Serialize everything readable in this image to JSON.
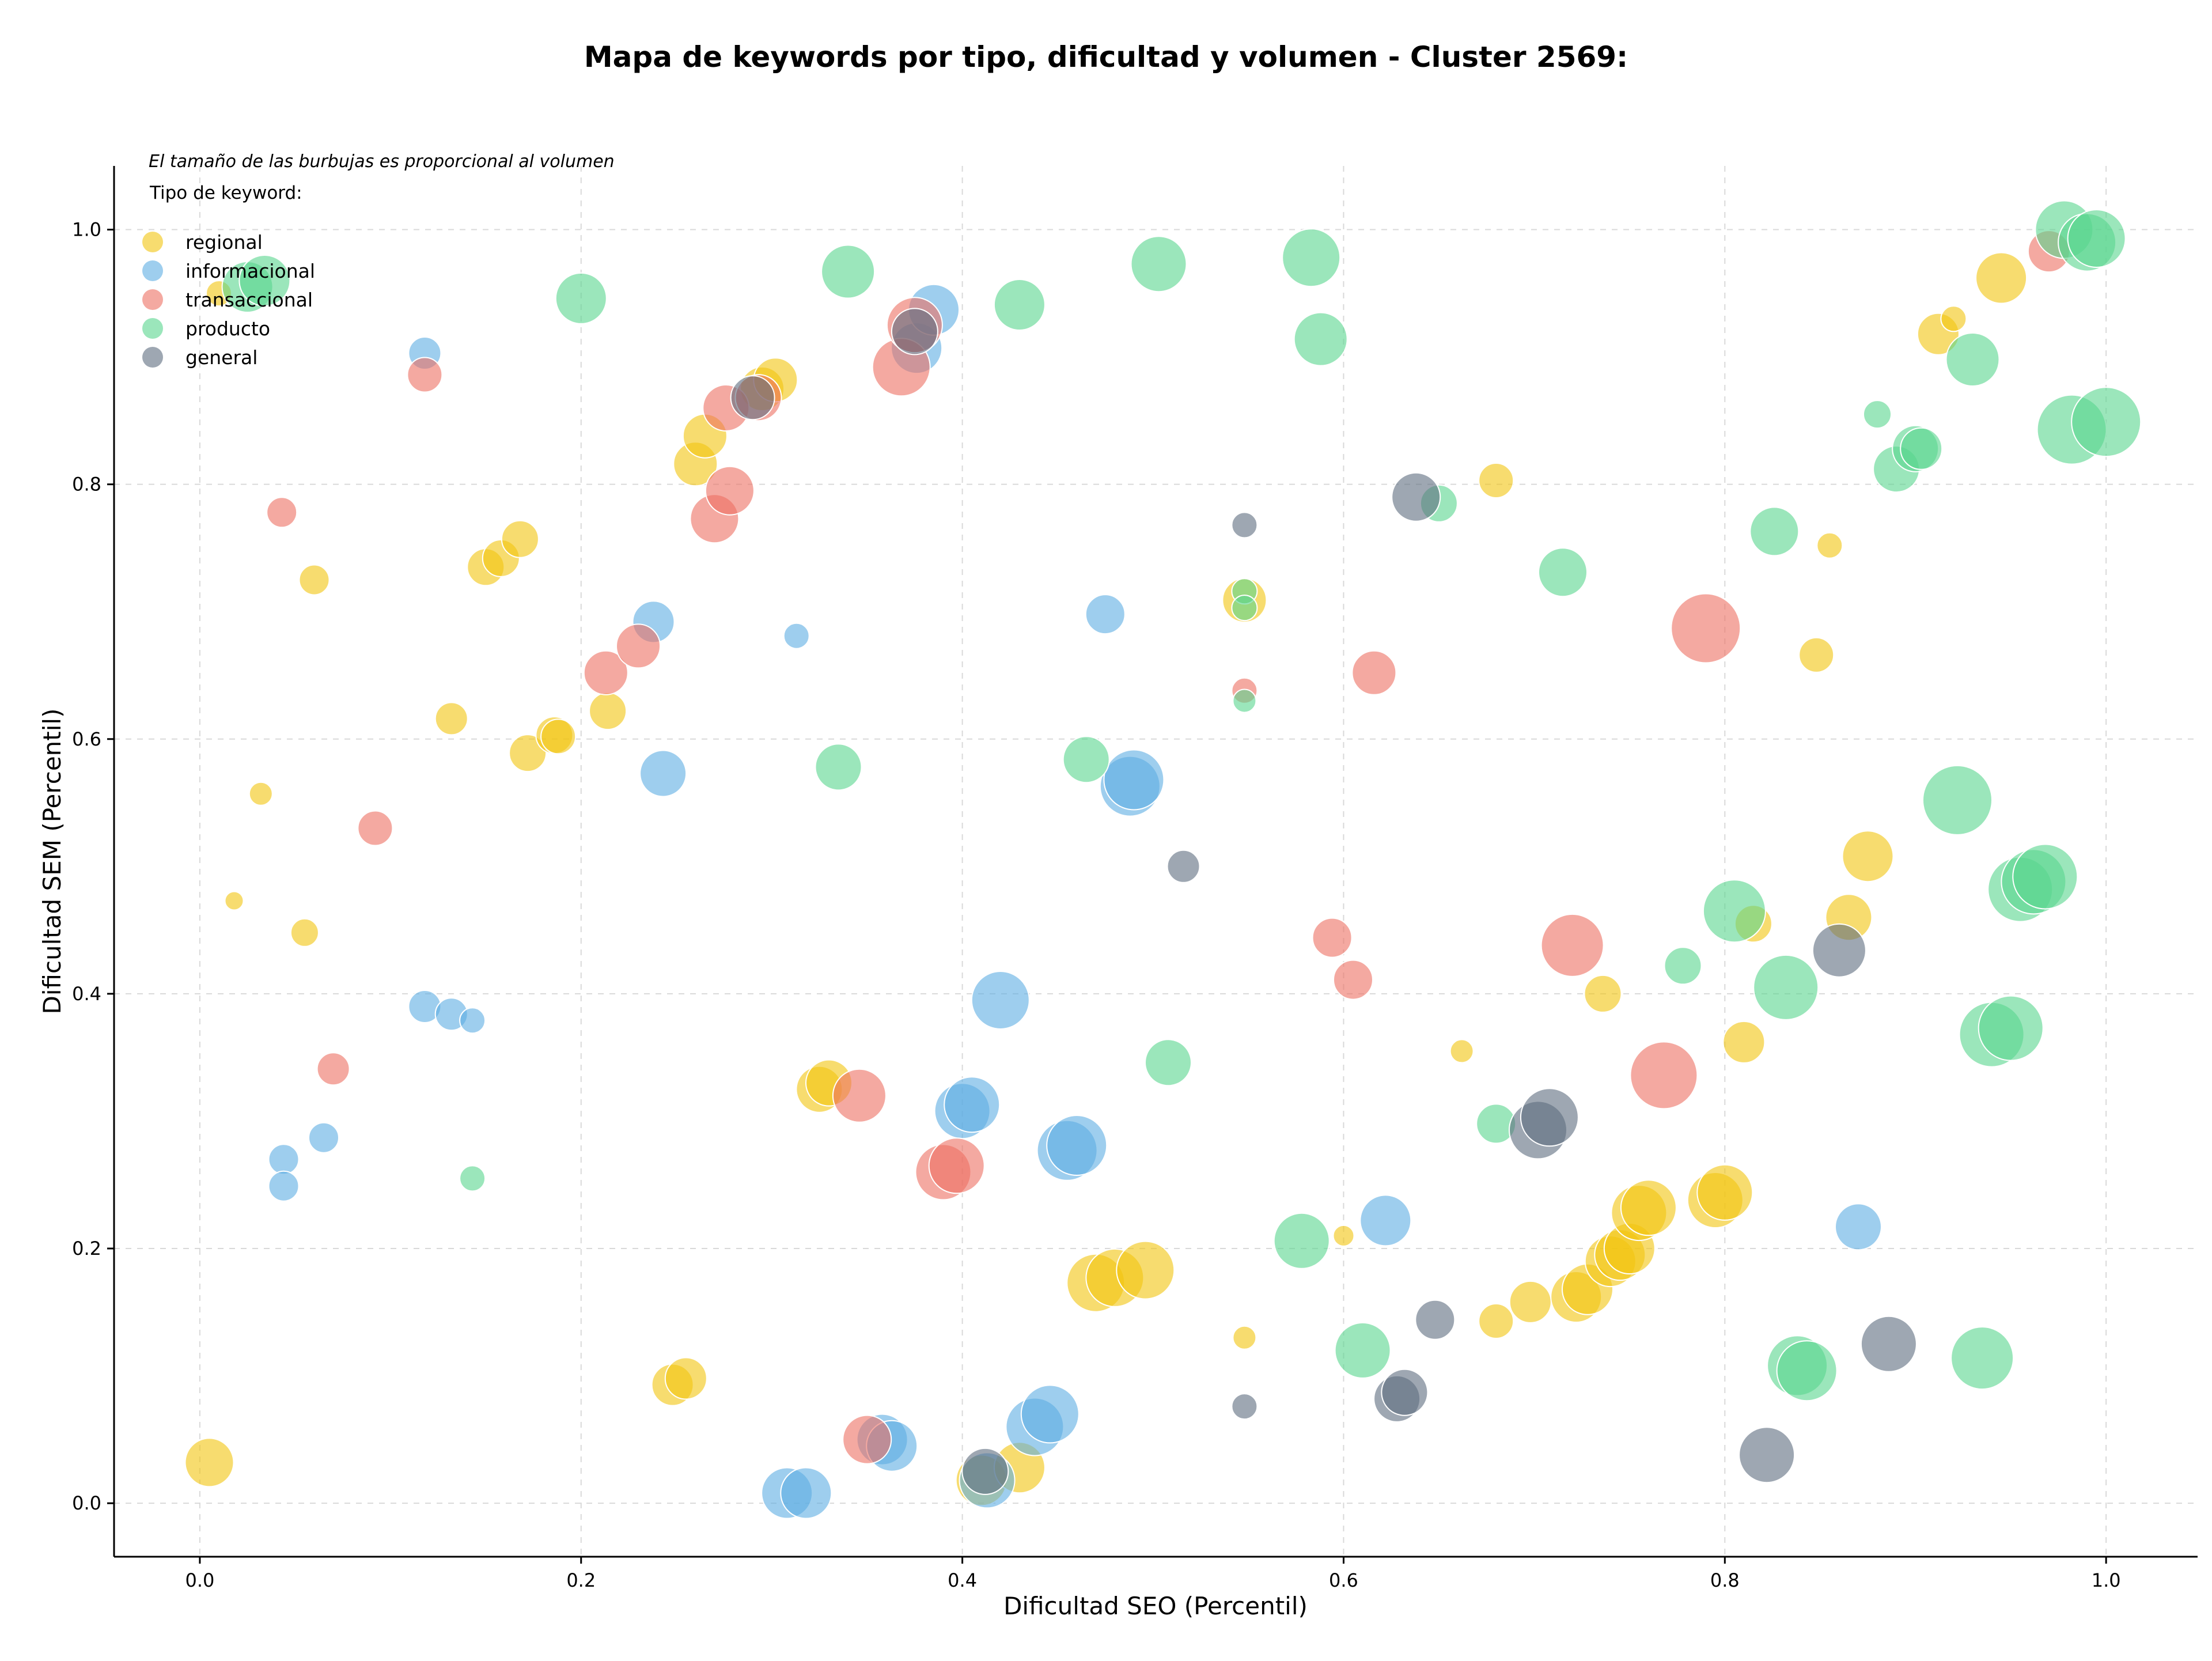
{
  "chart_data": {
    "type": "scatter",
    "title": "Mapa de keywords por tipo, dificultad y volumen - Cluster 2569:",
    "xlabel": "Dificultad SEO (Percentil)",
    "ylabel": "Dificultad SEM (Percentil)",
    "xlim": [
      -0.045,
      1.048
    ],
    "ylim": [
      -0.042,
      1.05
    ],
    "xticks": [
      "0.0",
      "0.2",
      "0.4",
      "0.6",
      "0.8",
      "1.0"
    ],
    "yticks": [
      "0.0",
      "0.2",
      "0.4",
      "0.6",
      "0.8",
      "1.0"
    ],
    "grid": true,
    "bubble_note": "El tamaño de las burbujas es proporcional al volumen",
    "legend_title": "Tipo de keyword:",
    "legend_position": "top-left",
    "series": [
      {
        "name": "regional",
        "color": "#F1C40F",
        "points": [
          [
            0.005,
            0.032,
            42
          ],
          [
            0.01,
            0.95,
            22
          ],
          [
            0.018,
            0.473,
            16
          ],
          [
            0.032,
            0.557,
            20
          ],
          [
            0.055,
            0.448,
            24
          ],
          [
            0.06,
            0.725,
            26
          ],
          [
            0.132,
            0.616,
            28
          ],
          [
            0.15,
            0.735,
            32
          ],
          [
            0.158,
            0.742,
            32
          ],
          [
            0.168,
            0.757,
            32
          ],
          [
            0.172,
            0.589,
            32
          ],
          [
            0.186,
            0.603,
            32
          ],
          [
            0.188,
            0.602,
            30
          ],
          [
            0.214,
            0.622,
            32
          ],
          [
            0.26,
            0.816,
            38
          ],
          [
            0.265,
            0.838,
            38
          ],
          [
            0.295,
            0.875,
            38
          ],
          [
            0.302,
            0.882,
            38
          ],
          [
            0.248,
            0.093,
            36
          ],
          [
            0.255,
            0.098,
            36
          ],
          [
            0.325,
            0.325,
            40
          ],
          [
            0.33,
            0.33,
            40
          ],
          [
            0.41,
            0.018,
            44
          ],
          [
            0.43,
            0.028,
            44
          ],
          [
            0.47,
            0.173,
            50
          ],
          [
            0.48,
            0.177,
            50
          ],
          [
            0.496,
            0.183,
            50
          ],
          [
            0.548,
            0.709,
            38
          ],
          [
            0.548,
            0.13,
            20
          ],
          [
            0.6,
            0.21,
            18
          ],
          [
            0.662,
            0.355,
            20
          ],
          [
            0.68,
            0.803,
            30
          ],
          [
            0.68,
            0.143,
            30
          ],
          [
            0.698,
            0.158,
            36
          ],
          [
            0.722,
            0.162,
            44
          ],
          [
            0.728,
            0.168,
            44
          ],
          [
            0.736,
            0.4,
            32
          ],
          [
            0.74,
            0.19,
            44
          ],
          [
            0.745,
            0.195,
            44
          ],
          [
            0.75,
            0.2,
            44
          ],
          [
            0.755,
            0.228,
            48
          ],
          [
            0.76,
            0.232,
            48
          ],
          [
            0.795,
            0.238,
            48
          ],
          [
            0.8,
            0.244,
            48
          ],
          [
            0.81,
            0.362,
            36
          ],
          [
            0.815,
            0.455,
            32
          ],
          [
            0.848,
            0.666,
            30
          ],
          [
            0.855,
            0.752,
            22
          ],
          [
            0.865,
            0.46,
            40
          ],
          [
            0.875,
            0.508,
            44
          ],
          [
            0.912,
            0.918,
            36
          ],
          [
            0.92,
            0.93,
            22
          ],
          [
            0.945,
            0.962,
            44
          ]
        ]
      },
      {
        "name": "informacional",
        "color": "#5DADE2",
        "points": [
          [
            0.044,
            0.27,
            26
          ],
          [
            0.044,
            0.249,
            26
          ],
          [
            0.065,
            0.287,
            26
          ],
          [
            0.118,
            0.903,
            28
          ],
          [
            0.118,
            0.39,
            28
          ],
          [
            0.132,
            0.384,
            28
          ],
          [
            0.143,
            0.379,
            22
          ],
          [
            0.238,
            0.692,
            36
          ],
          [
            0.243,
            0.573,
            40
          ],
          [
            0.313,
            0.681,
            22
          ],
          [
            0.308,
            0.008,
            44
          ],
          [
            0.318,
            0.008,
            44
          ],
          [
            0.358,
            0.05,
            44
          ],
          [
            0.363,
            0.045,
            44
          ],
          [
            0.376,
            0.907,
            44
          ],
          [
            0.385,
            0.937,
            44
          ],
          [
            0.4,
            0.308,
            48
          ],
          [
            0.405,
            0.313,
            48
          ],
          [
            0.413,
            0.018,
            48
          ],
          [
            0.42,
            0.395,
            50
          ],
          [
            0.438,
            0.06,
            50
          ],
          [
            0.446,
            0.07,
            50
          ],
          [
            0.455,
            0.277,
            52
          ],
          [
            0.46,
            0.281,
            52
          ],
          [
            0.475,
            0.698,
            34
          ],
          [
            0.488,
            0.563,
            52
          ],
          [
            0.49,
            0.568,
            52
          ],
          [
            0.622,
            0.222,
            44
          ],
          [
            0.87,
            0.217,
            40
          ]
        ]
      },
      {
        "name": "transaccional",
        "color": "#EC7063",
        "points": [
          [
            0.043,
            0.778,
            26
          ],
          [
            0.07,
            0.341,
            28
          ],
          [
            0.118,
            0.886,
            30
          ],
          [
            0.092,
            0.53,
            30
          ],
          [
            0.213,
            0.652,
            38
          ],
          [
            0.23,
            0.673,
            38
          ],
          [
            0.27,
            0.773,
            42
          ],
          [
            0.278,
            0.795,
            42
          ],
          [
            0.276,
            0.86,
            40
          ],
          [
            0.293,
            0.868,
            40
          ],
          [
            0.346,
            0.32,
            46
          ],
          [
            0.35,
            0.05,
            42
          ],
          [
            0.368,
            0.892,
            50
          ],
          [
            0.375,
            0.925,
            48
          ],
          [
            0.39,
            0.26,
            48
          ],
          [
            0.397,
            0.265,
            48
          ],
          [
            0.548,
            0.638,
            22
          ],
          [
            0.594,
            0.444,
            34
          ],
          [
            0.605,
            0.411,
            34
          ],
          [
            0.616,
            0.652,
            38
          ],
          [
            0.72,
            0.438,
            54
          ],
          [
            0.768,
            0.336,
            58
          ],
          [
            0.79,
            0.687,
            60
          ],
          [
            0.97,
            0.983,
            36
          ]
        ]
      },
      {
        "name": "producto",
        "color": "#58D68D",
        "points": [
          [
            0.025,
            0.955,
            44
          ],
          [
            0.034,
            0.96,
            44
          ],
          [
            0.143,
            0.255,
            22
          ],
          [
            0.2,
            0.946,
            44
          ],
          [
            0.335,
            0.578,
            40
          ],
          [
            0.34,
            0.967,
            46
          ],
          [
            0.43,
            0.941,
            44
          ],
          [
            0.465,
            0.584,
            40
          ],
          [
            0.503,
            0.973,
            48
          ],
          [
            0.508,
            0.346,
            40
          ],
          [
            0.548,
            0.716,
            22
          ],
          [
            0.548,
            0.703,
            22
          ],
          [
            0.548,
            0.63,
            20
          ],
          [
            0.578,
            0.206,
            48
          ],
          [
            0.583,
            0.978,
            50
          ],
          [
            0.588,
            0.914,
            46
          ],
          [
            0.61,
            0.12,
            48
          ],
          [
            0.65,
            0.785,
            32
          ],
          [
            0.68,
            0.298,
            34
          ],
          [
            0.715,
            0.731,
            42
          ],
          [
            0.778,
            0.422,
            32
          ],
          [
            0.805,
            0.465,
            54
          ],
          [
            0.826,
            0.763,
            42
          ],
          [
            0.832,
            0.405,
            56
          ],
          [
            0.838,
            0.108,
            52
          ],
          [
            0.843,
            0.104,
            52
          ],
          [
            0.88,
            0.855,
            24
          ],
          [
            0.89,
            0.812,
            40
          ],
          [
            0.9,
            0.828,
            40
          ],
          [
            0.903,
            0.828,
            36
          ],
          [
            0.922,
            0.552,
            60
          ],
          [
            0.93,
            0.898,
            46
          ],
          [
            0.935,
            0.114,
            54
          ],
          [
            0.94,
            0.368,
            56
          ],
          [
            0.95,
            0.373,
            56
          ],
          [
            0.955,
            0.482,
            56
          ],
          [
            0.962,
            0.488,
            56
          ],
          [
            0.968,
            0.492,
            56
          ],
          [
            0.978,
            1.0,
            50
          ],
          [
            0.982,
            0.843,
            60
          ],
          [
            0.99,
            0.99,
            50
          ],
          [
            0.995,
            0.993,
            50
          ],
          [
            1.0,
            0.849,
            60
          ]
        ]
      },
      {
        "name": "general",
        "color": "#5D6D7E",
        "points": [
          [
            0.29,
            0.868,
            38
          ],
          [
            0.375,
            0.92,
            40
          ],
          [
            0.412,
            0.025,
            40
          ],
          [
            0.516,
            0.5,
            28
          ],
          [
            0.548,
            0.768,
            22
          ],
          [
            0.548,
            0.076,
            22
          ],
          [
            0.628,
            0.082,
            40
          ],
          [
            0.632,
            0.087,
            40
          ],
          [
            0.638,
            0.79,
            42
          ],
          [
            0.648,
            0.144,
            34
          ],
          [
            0.702,
            0.293,
            50
          ],
          [
            0.708,
            0.303,
            50
          ],
          [
            0.822,
            0.038,
            48
          ],
          [
            0.86,
            0.434,
            46
          ],
          [
            0.886,
            0.125,
            48
          ]
        ]
      }
    ]
  }
}
